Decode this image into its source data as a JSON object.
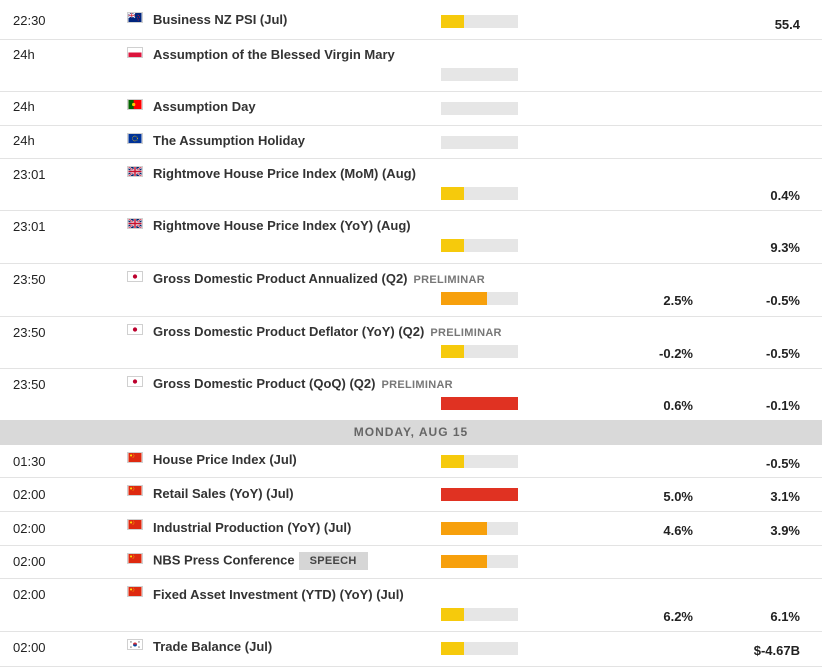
{
  "events_before": [
    {
      "time": "22:30",
      "flag": "nz-flag-icon",
      "title": "Business NZ PSI (Jul)",
      "tag": "",
      "impact": "low",
      "consensus": "",
      "previous": "55.4"
    },
    {
      "time": "24h",
      "flag": "pl-flag-icon",
      "title": "Assumption of the Blessed Virgin Mary",
      "tag": "",
      "impact": "none",
      "consensus": "",
      "previous": ""
    },
    {
      "time": "24h",
      "flag": "pt-flag-icon",
      "title": "Assumption Day",
      "tag": "",
      "impact": "none",
      "consensus": "",
      "previous": ""
    },
    {
      "time": "24h",
      "flag": "eu-flag-icon",
      "title": "The Assumption Holiday",
      "tag": "",
      "impact": "none",
      "consensus": "",
      "previous": ""
    },
    {
      "time": "23:01",
      "flag": "uk-flag-icon",
      "title": "Rightmove House Price Index (MoM) (Aug)",
      "tag": "",
      "impact": "low",
      "consensus": "",
      "previous": "0.4%"
    },
    {
      "time": "23:01",
      "flag": "uk-flag-icon",
      "title": "Rightmove House Price Index (YoY) (Aug)",
      "tag": "",
      "impact": "low",
      "consensus": "",
      "previous": "9.3%"
    },
    {
      "time": "23:50",
      "flag": "jp-flag-icon",
      "title": "Gross Domestic Product Annualized (Q2)",
      "tag": "PRELIMINAR",
      "impact": "medium",
      "consensus": "2.5%",
      "previous": "-0.5%"
    },
    {
      "time": "23:50",
      "flag": "jp-flag-icon",
      "title": "Gross Domestic Product Deflator (YoY) (Q2)",
      "tag": "PRELIMINAR",
      "impact": "low",
      "consensus": "-0.2%",
      "previous": "-0.5%"
    },
    {
      "time": "23:50",
      "flag": "jp-flag-icon",
      "title": "Gross Domestic Product (QoQ) (Q2)",
      "tag": "PRELIMINAR",
      "impact": "high",
      "consensus": "0.6%",
      "previous": "-0.1%"
    }
  ],
  "day_header": "MONDAY, AUG 15",
  "events_after": [
    {
      "time": "01:30",
      "flag": "cn-flag-icon",
      "title": "House Price Index (Jul)",
      "tag": "",
      "impact": "low",
      "consensus": "",
      "previous": "-0.5%"
    },
    {
      "time": "02:00",
      "flag": "cn-flag-icon",
      "title": "Retail Sales (YoY) (Jul)",
      "tag": "",
      "impact": "high",
      "consensus": "5.0%",
      "previous": "3.1%"
    },
    {
      "time": "02:00",
      "flag": "cn-flag-icon",
      "title": "Industrial Production (YoY) (Jul)",
      "tag": "",
      "impact": "medium",
      "consensus": "4.6%",
      "previous": "3.9%"
    },
    {
      "time": "02:00",
      "flag": "cn-flag-icon",
      "title": "NBS Press Conference",
      "tag": "SPEECH",
      "impact": "medium",
      "consensus": "",
      "previous": ""
    },
    {
      "time": "02:00",
      "flag": "cn-flag-icon",
      "title": "Fixed Asset Investment (YTD) (YoY) (Jul)",
      "tag": "",
      "impact": "low",
      "consensus": "6.2%",
      "previous": "6.1%"
    },
    {
      "time": "02:00",
      "flag": "kr-flag-icon",
      "title": "Trade Balance (Jul)",
      "tag": "",
      "impact": "low",
      "consensus": "",
      "previous": "$-4.67B"
    }
  ],
  "colors": {
    "low": "#f6ca0c",
    "medium": "#f7a00c",
    "high": "#e03222",
    "empty": "#e6e6e6",
    "day_header_bg": "#d9d9d9"
  }
}
